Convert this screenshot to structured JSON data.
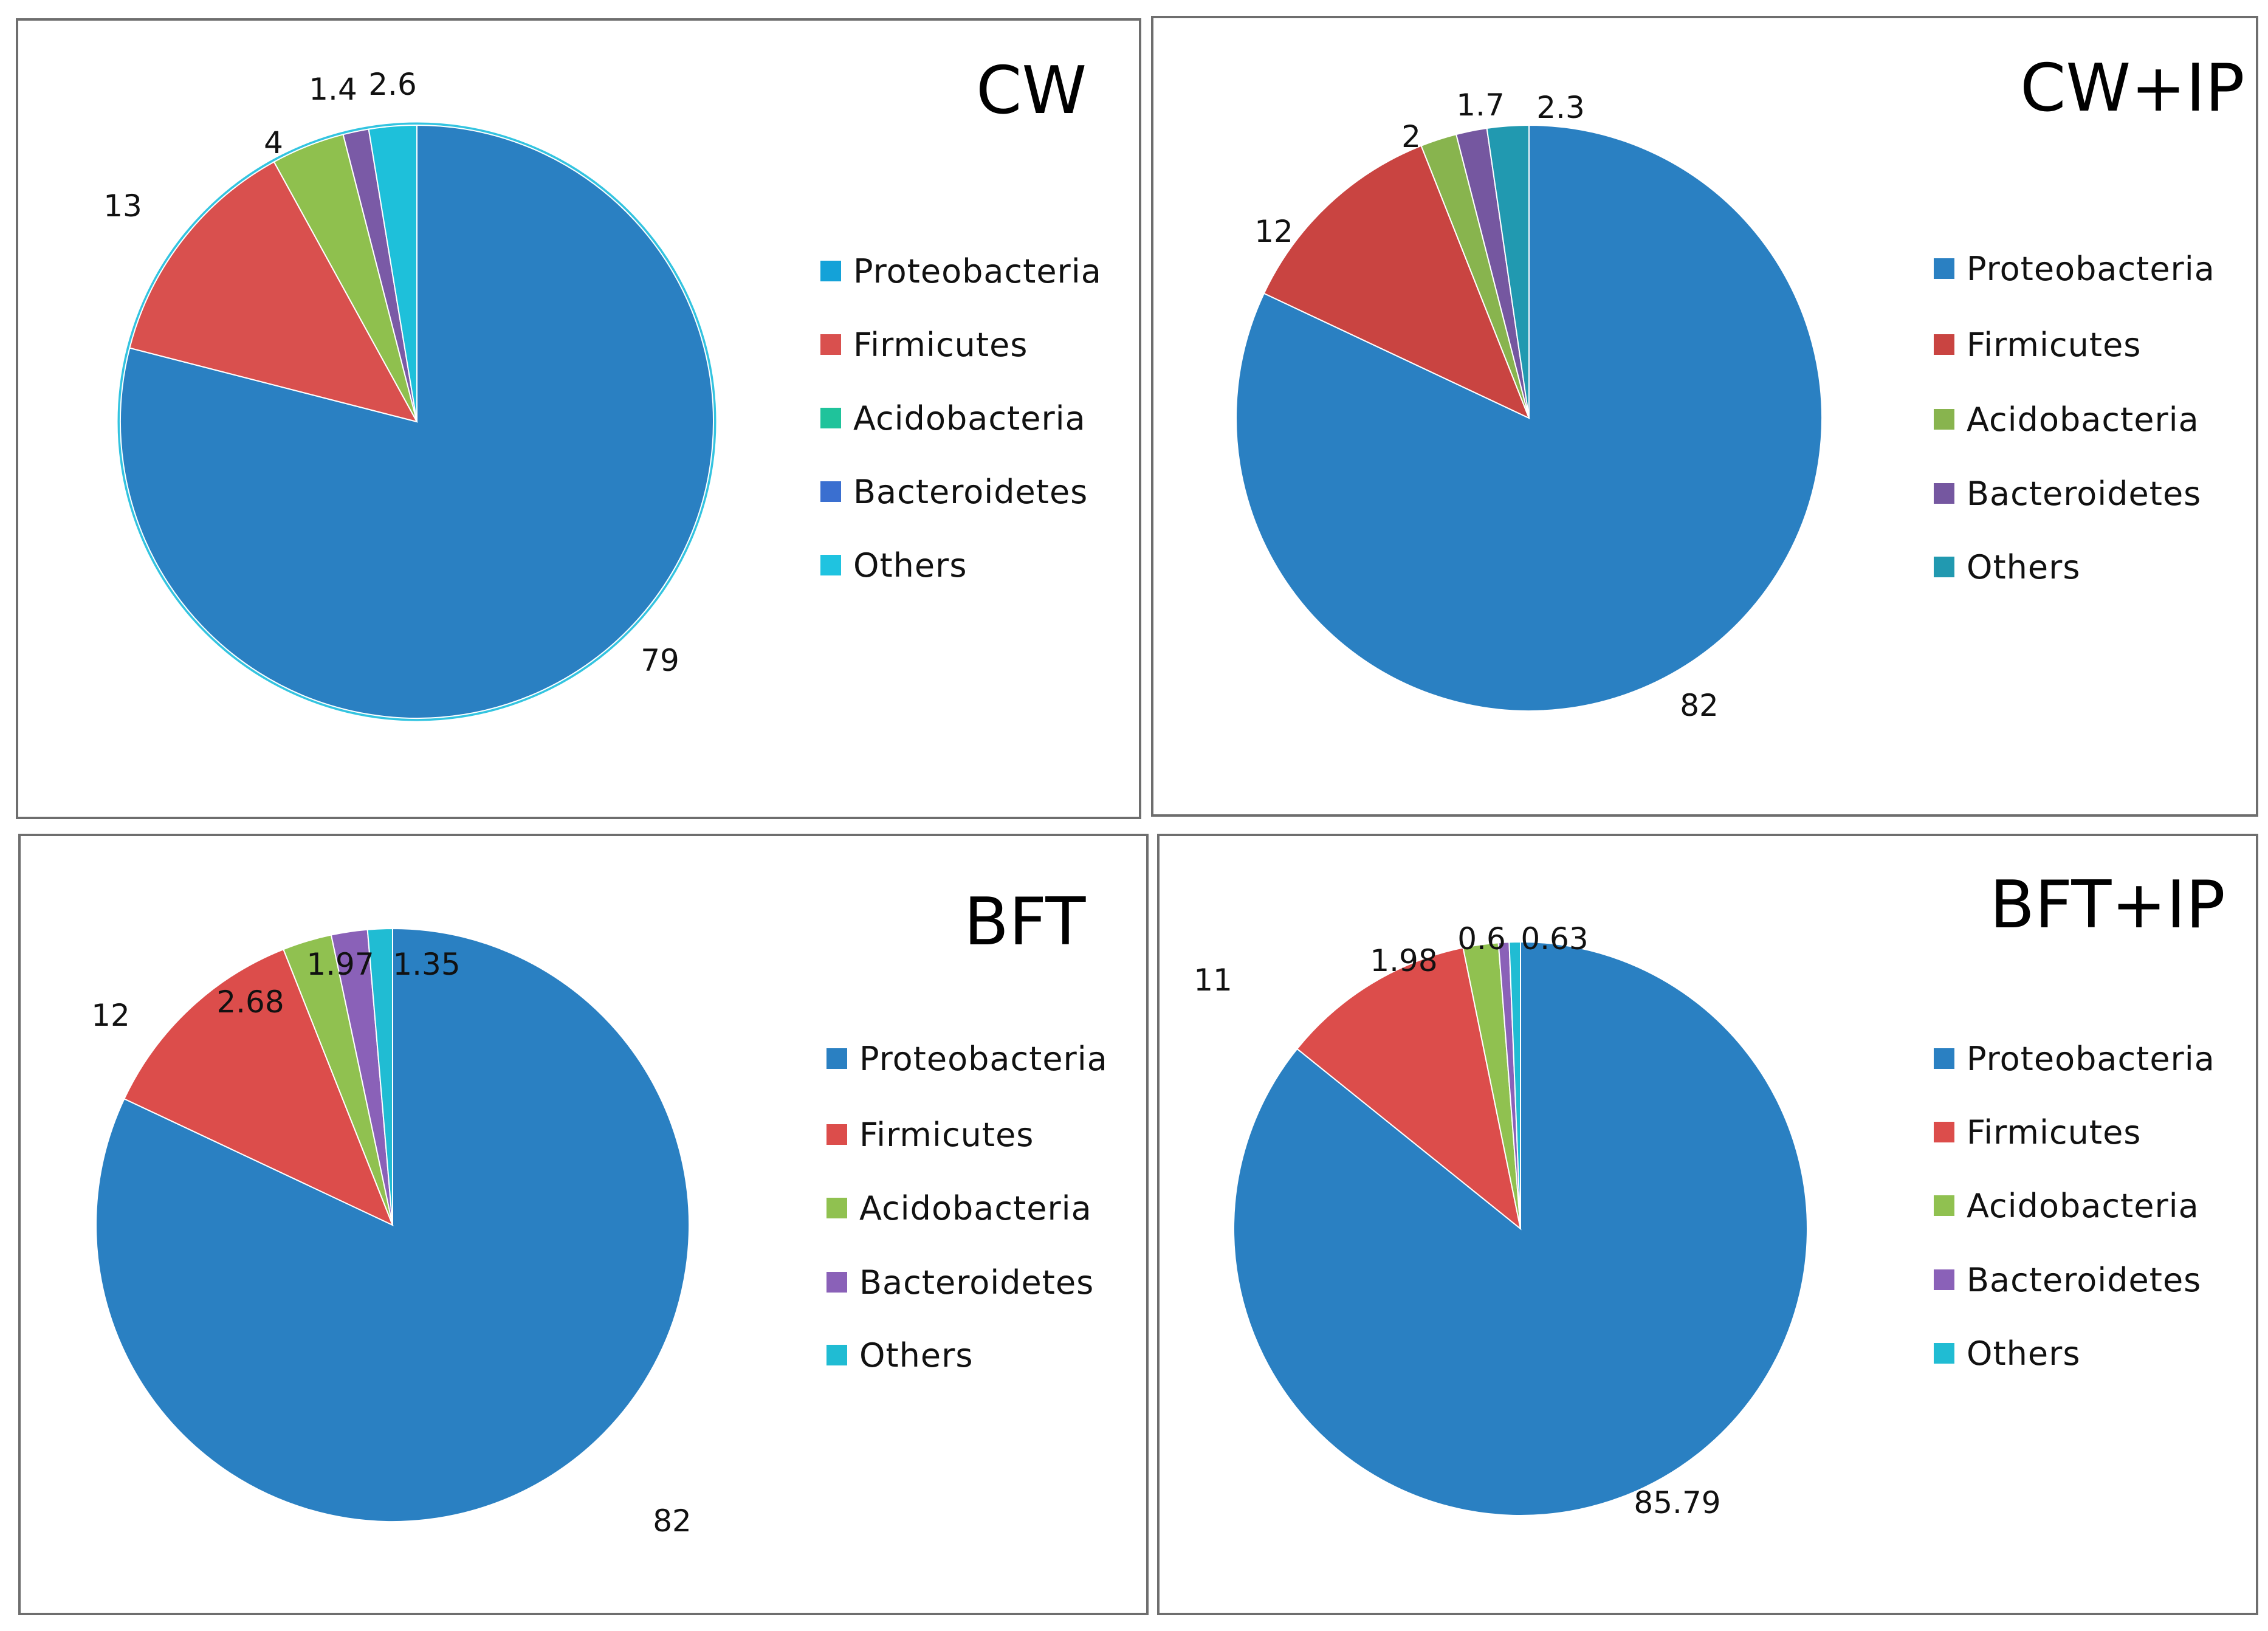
{
  "chart_data": [
    {
      "type": "pie",
      "title": "CW",
      "categories": [
        "Proteobacteria",
        "Firmicutes",
        "Acidobacteria",
        "Bacteroidetes",
        "Others"
      ],
      "values": [
        79,
        13,
        4,
        1.4,
        2.6
      ],
      "value_labels": [
        "79",
        "13",
        "4",
        "1.4",
        "2.6"
      ],
      "colors": [
        "#2a80c2",
        "#d9504e",
        "#8fc04e",
        "#7a5aa6",
        "#1ec0da"
      ],
      "legend_colors": [
        "#14a2d8",
        "#d9504e",
        "#1fc39b",
        "#3a6fd0",
        "#1fc3e0"
      ],
      "outline": "#33c4e0",
      "legend": "right"
    },
    {
      "type": "pie",
      "title": "CW+IP",
      "categories": [
        "Proteobacteria",
        "Firmicutes",
        "Acidobacteria",
        "Bacteroidetes",
        "Others"
      ],
      "values": [
        82,
        12,
        2,
        1.7,
        2.3
      ],
      "value_labels": [
        "82",
        "12",
        "2",
        "1.7",
        "2.3"
      ],
      "colors": [
        "#2a80c2",
        "#c94441",
        "#88b44e",
        "#7557a0",
        "#2199b0"
      ],
      "legend_colors": [
        "#2a80c2",
        "#c94441",
        "#88b44e",
        "#7557a0",
        "#2199b0"
      ],
      "outline": "",
      "legend": "right"
    },
    {
      "type": "pie",
      "title": "BFT",
      "categories": [
        "Proteobacteria",
        "Firmicutes",
        "Acidobacteria",
        "Bacteroidetes",
        "Others"
      ],
      "values": [
        82,
        12,
        2.68,
        1.97,
        1.35
      ],
      "value_labels": [
        "82",
        "12",
        "2.68",
        "1.97",
        "1.35"
      ],
      "colors": [
        "#2a80c2",
        "#dc4d4b",
        "#90c150",
        "#8a61b8",
        "#20bcd3"
      ],
      "legend_colors": [
        "#2a80c2",
        "#dc4d4b",
        "#90c150",
        "#8a61b8",
        "#20bcd3"
      ],
      "outline": "",
      "legend": "right"
    },
    {
      "type": "pie",
      "title": "BFT+IP",
      "categories": [
        "Proteobacteria",
        "Firmicutes",
        "Acidobacteria",
        "Bacteroidetes",
        "Others"
      ],
      "values": [
        85.79,
        11,
        1.98,
        0.6,
        0.63
      ],
      "value_labels": [
        "85.79",
        "11",
        "1.98",
        "0.6",
        "0.63"
      ],
      "colors": [
        "#2a80c2",
        "#dc4d4b",
        "#90c150",
        "#8a61b8",
        "#20bcd3"
      ],
      "legend_colors": [
        "#2a80c2",
        "#dc4d4b",
        "#90c150",
        "#8a61b8",
        "#20bcd3"
      ],
      "outline": "",
      "legend": "right"
    }
  ]
}
